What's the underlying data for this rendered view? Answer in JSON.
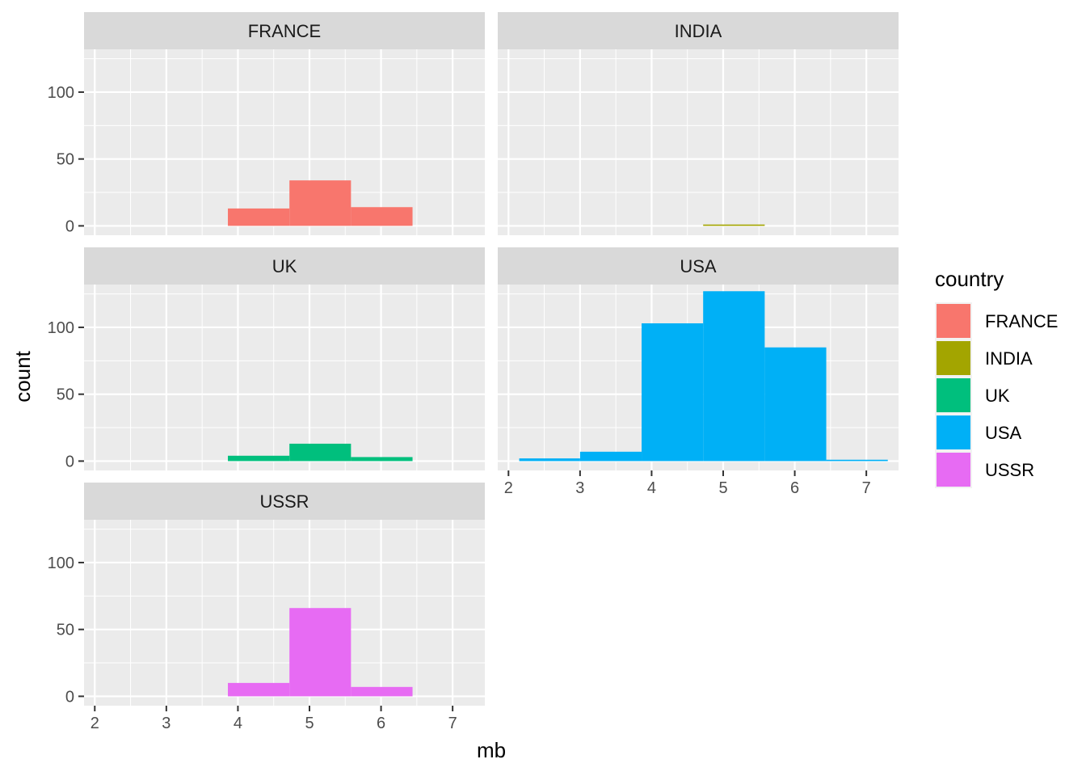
{
  "chart_data": {
    "type": "bar",
    "subtype": "faceted-histogram",
    "xlabel": "mb",
    "ylabel": "count",
    "xlim": [
      1.85,
      7.45
    ],
    "ylim": [
      -7,
      132
    ],
    "x_ticks": [
      2,
      3,
      4,
      5,
      6,
      7
    ],
    "y_ticks": [
      0,
      50,
      100
    ],
    "bins": [
      [
        2.15,
        3.0
      ],
      [
        3.0,
        3.86
      ],
      [
        3.86,
        4.72
      ],
      [
        4.72,
        5.58
      ],
      [
        5.58,
        6.44
      ],
      [
        6.44,
        7.3
      ]
    ],
    "legend": {
      "title": "country",
      "entries": [
        {
          "label": "FRANCE",
          "color": "#F8766D"
        },
        {
          "label": "INDIA",
          "color": "#A3A500"
        },
        {
          "label": "UK",
          "color": "#00BF7D"
        },
        {
          "label": "USA",
          "color": "#00B0F6"
        },
        {
          "label": "USSR",
          "color": "#E76BF3"
        }
      ]
    },
    "facets": [
      {
        "label": "FRANCE",
        "color": "#F8766D",
        "counts": [
          0,
          0,
          13,
          34,
          14,
          0
        ]
      },
      {
        "label": "INDIA",
        "color": "#A3A500",
        "counts": [
          0,
          0,
          0,
          1,
          0,
          0
        ]
      },
      {
        "label": "UK",
        "color": "#00BF7D",
        "counts": [
          0,
          0,
          4,
          13,
          3,
          0
        ]
      },
      {
        "label": "USA",
        "color": "#00B0F6",
        "counts": [
          2,
          7,
          103,
          127,
          85,
          1
        ]
      },
      {
        "label": "USSR",
        "color": "#E76BF3",
        "counts": [
          0,
          0,
          10,
          66,
          7,
          0
        ]
      }
    ]
  }
}
